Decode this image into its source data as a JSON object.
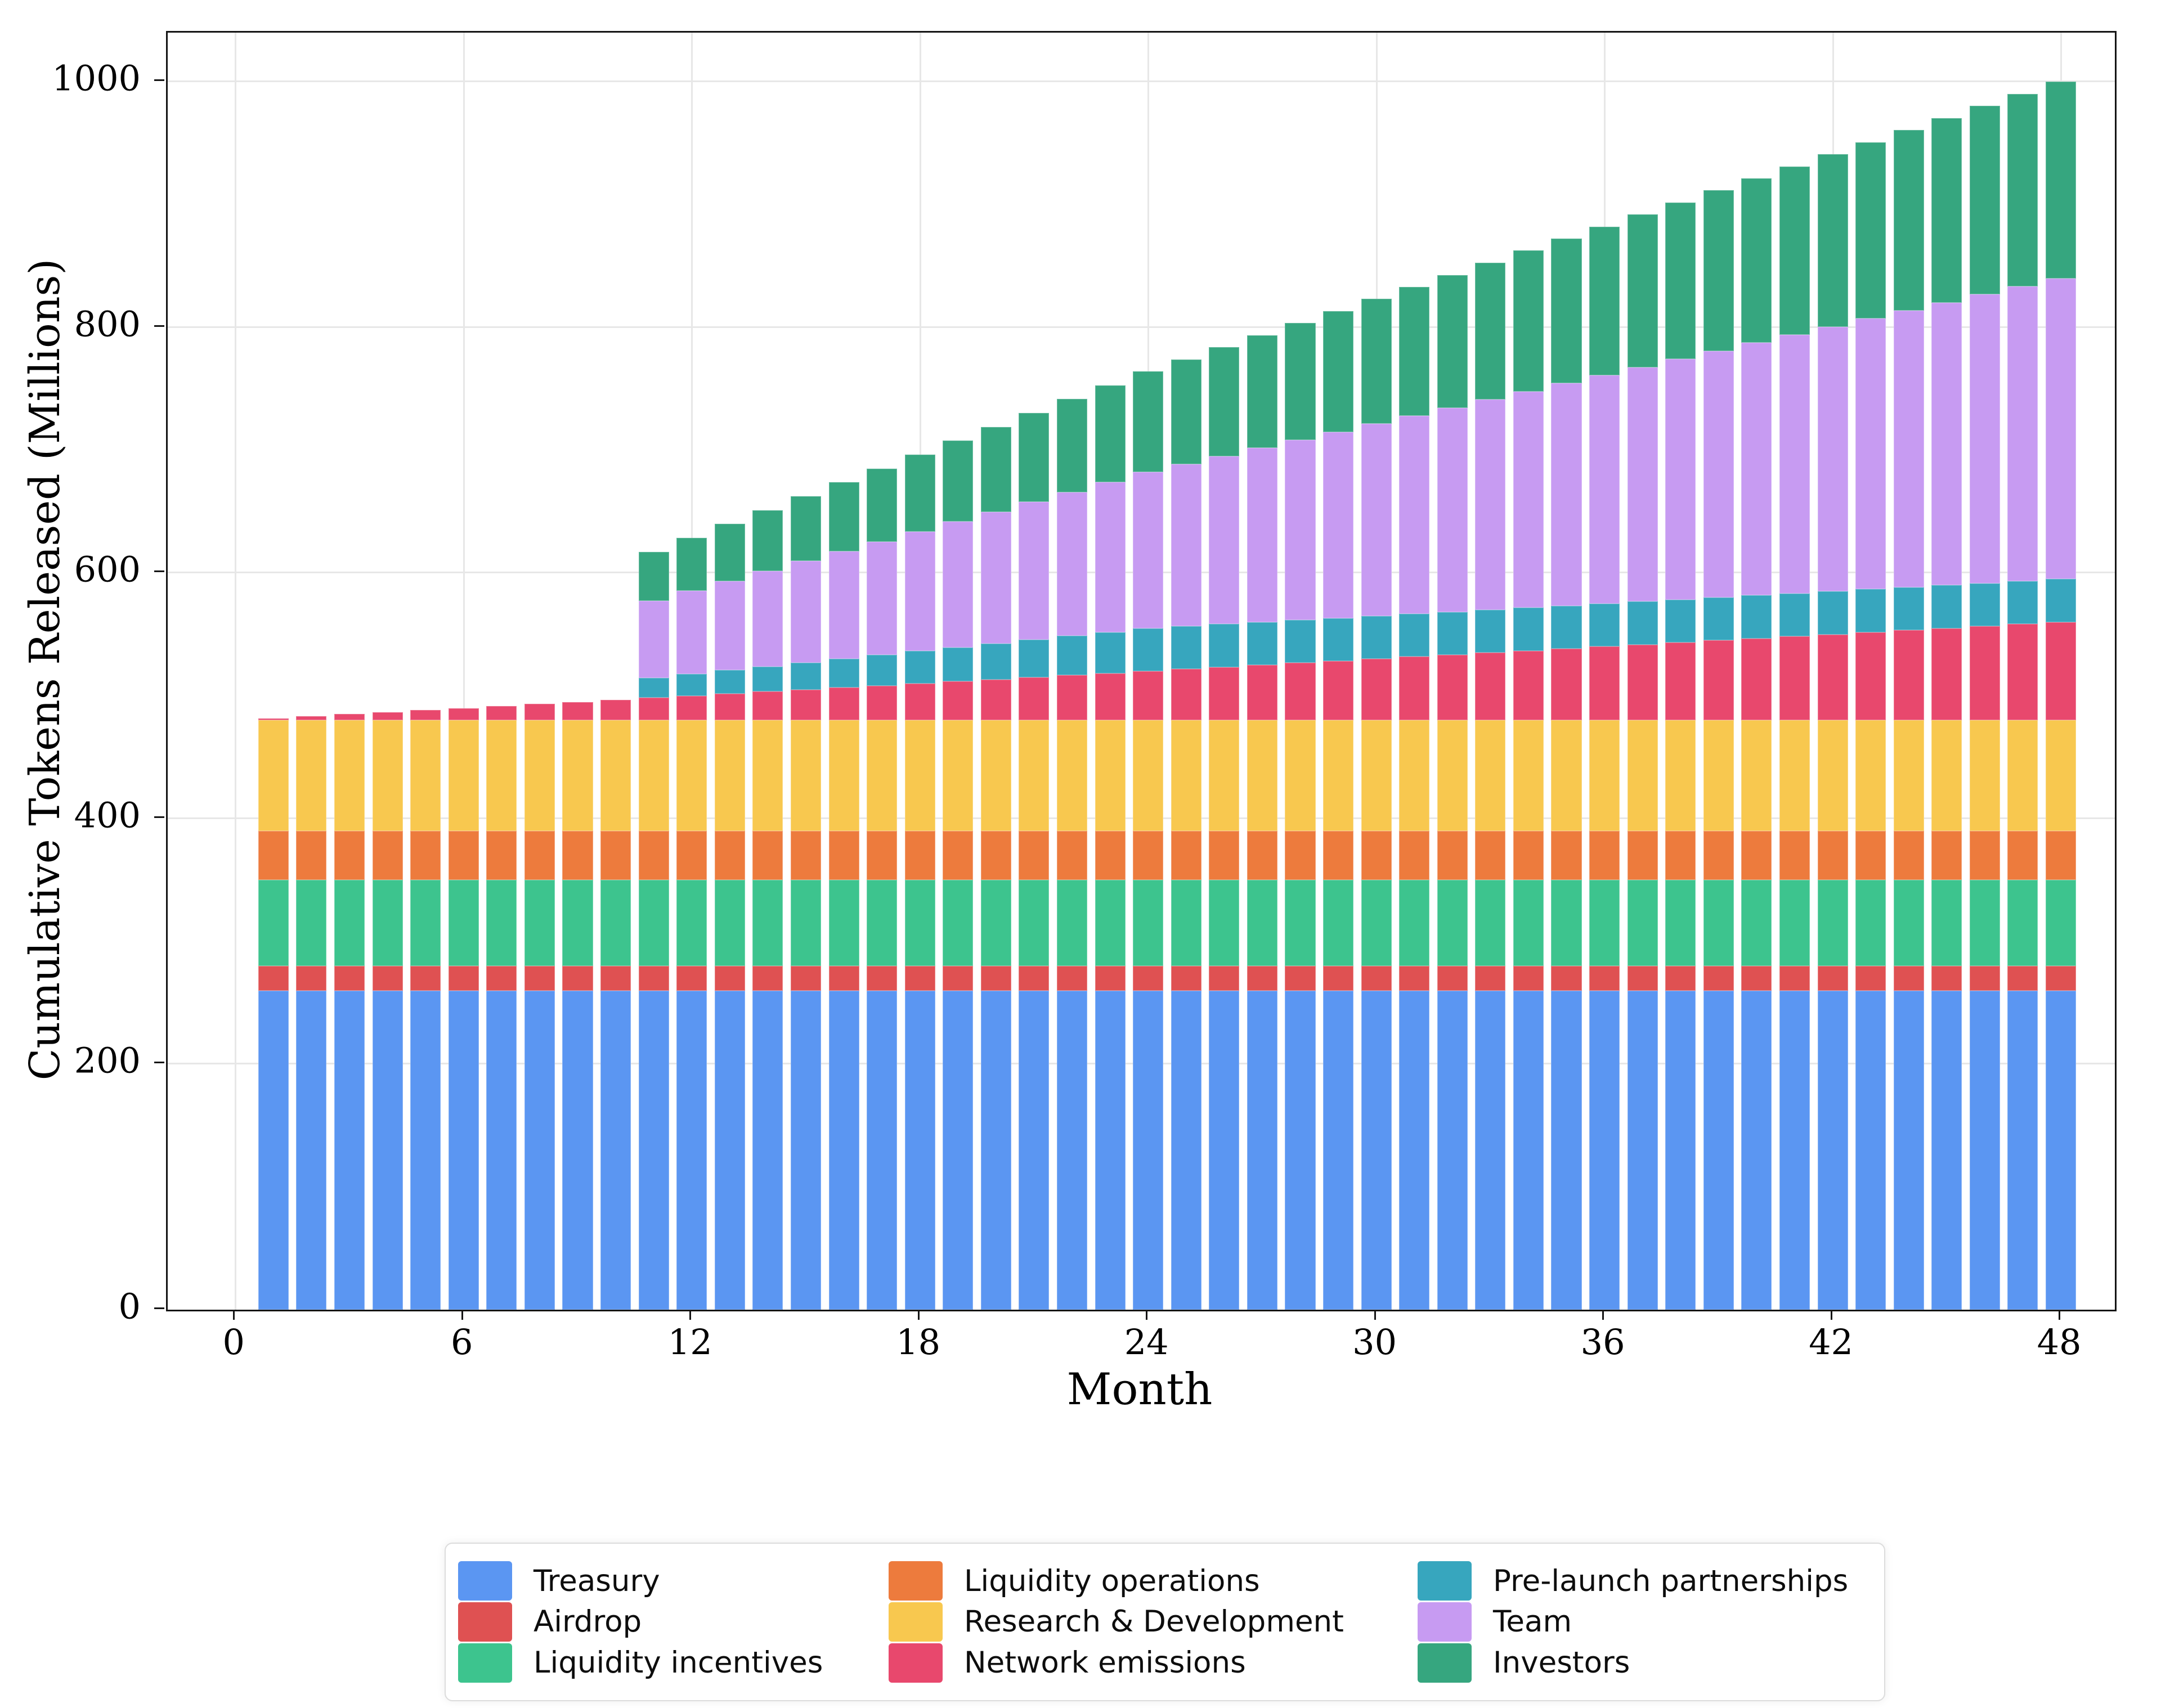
{
  "chart_data": {
    "type": "bar",
    "stacked": true,
    "title": "",
    "xlabel": "Month",
    "ylabel": "Cumulative Tokens Released (Millions)",
    "legend_position": "bottom-center",
    "grid": true,
    "months": [
      1,
      2,
      3,
      4,
      5,
      6,
      7,
      8,
      9,
      10,
      11,
      12,
      13,
      14,
      15,
      16,
      17,
      18,
      19,
      20,
      21,
      22,
      23,
      24,
      25,
      26,
      27,
      28,
      29,
      30,
      31,
      32,
      33,
      34,
      35,
      36,
      37,
      38,
      39,
      40,
      41,
      42,
      43,
      44,
      45,
      46,
      47,
      48
    ],
    "x_ticks": [
      0,
      6,
      12,
      18,
      24,
      30,
      36,
      42,
      48
    ],
    "y_ticks": [
      0,
      200,
      400,
      600,
      800,
      1000
    ],
    "xlim": [
      -1.78,
      49.42
    ],
    "ylim": [
      0,
      1040
    ],
    "bar_width_months": 0.8,
    "total_supply_millions": 1000,
    "series": [
      {
        "name": "Treasury",
        "color": "#5B96F2",
        "constant": 260
      },
      {
        "name": "Airdrop",
        "color": "#DF5152",
        "constant": 20
      },
      {
        "name": "Liquidity incentives",
        "color": "#3DC48E",
        "constant": 70
      },
      {
        "name": "Liquidity operations",
        "color": "#ED7B3D",
        "constant": 40
      },
      {
        "name": "Research & Development",
        "color": "#F8C84F",
        "constant": 90
      },
      {
        "name": "Network emissions",
        "color": "#E8486D",
        "values": [
          1.7,
          3.3,
          5,
          6.7,
          8.3,
          10,
          11.7,
          13.3,
          15,
          16.7,
          18.3,
          20,
          21.7,
          23.3,
          25,
          26.7,
          28.3,
          30,
          31.7,
          33.3,
          35,
          36.7,
          38.3,
          40,
          41.7,
          43.3,
          45,
          46.7,
          48.3,
          50,
          51.7,
          53.3,
          55,
          56.7,
          58.3,
          60,
          61.7,
          63.3,
          65,
          66.7,
          68.3,
          70,
          71.7,
          73.3,
          75,
          76.7,
          78.3,
          80
        ]
      },
      {
        "name": "Pre-launch partnerships",
        "color": "#37A6BE",
        "values": [
          0,
          0,
          0,
          0,
          0,
          0,
          0,
          0,
          0,
          0,
          16,
          17.5,
          19,
          20.4,
          21.9,
          23.3,
          24.8,
          26.3,
          27.7,
          29.2,
          30.6,
          32.1,
          33.5,
          35,
          35,
          35,
          35,
          35,
          35,
          35,
          35,
          35,
          35,
          35,
          35,
          35,
          35,
          35,
          35,
          35,
          35,
          35,
          35,
          35,
          35,
          35,
          35,
          35
        ]
      },
      {
        "name": "Team",
        "color": "#C79BF2",
        "values": [
          0,
          0,
          0,
          0,
          0,
          0,
          0,
          0,
          0,
          0,
          63,
          67.9,
          72.8,
          77.8,
          82.7,
          87.6,
          92.5,
          97.4,
          102.4,
          107.3,
          112.2,
          117.1,
          122,
          127,
          131.9,
          136.8,
          141.7,
          146.6,
          151.6,
          156.5,
          161.4,
          166.3,
          171.2,
          176.2,
          181.1,
          186,
          190.9,
          195.8,
          200.8,
          205.7,
          210.6,
          215.5,
          220.4,
          225.4,
          230.3,
          235.2,
          240.1,
          245
        ]
      },
      {
        "name": "Investors",
        "color": "#36A67F",
        "values": [
          0,
          0,
          0,
          0,
          0,
          0,
          0,
          0,
          0,
          0,
          40,
          43.2,
          46.5,
          49.7,
          53,
          56.2,
          59.5,
          62.7,
          65.9,
          69.2,
          72.4,
          75.7,
          78.9,
          82.2,
          85.4,
          88.6,
          91.9,
          95.1,
          98.4,
          101.6,
          104.9,
          108.1,
          111.4,
          114.6,
          117.8,
          121.1,
          124.3,
          127.6,
          130.8,
          134.1,
          137.3,
          140.5,
          143.8,
          147,
          150.3,
          153.5,
          156.8,
          160
        ]
      }
    ]
  }
}
